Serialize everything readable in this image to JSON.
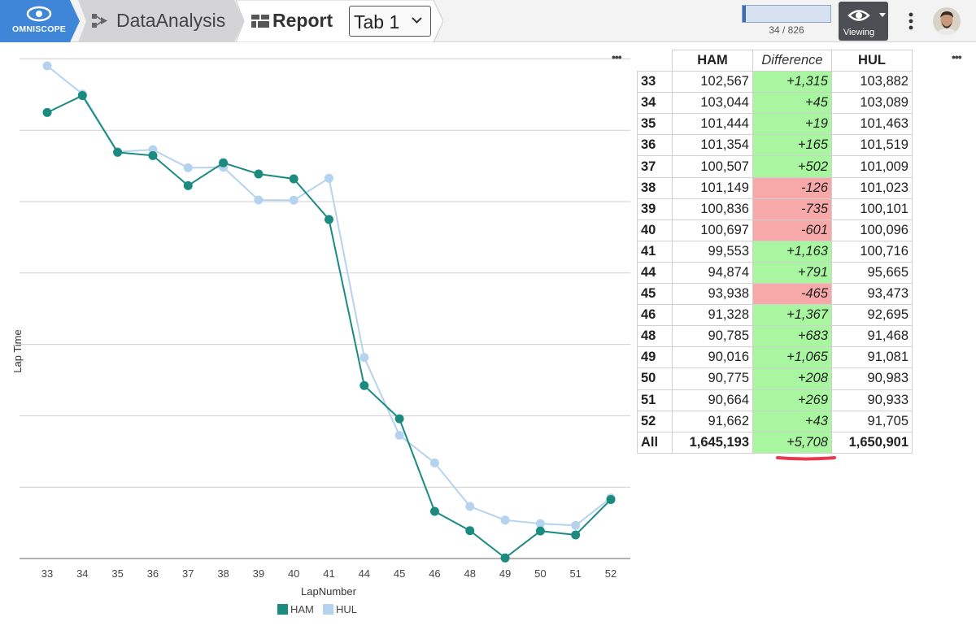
{
  "app": {
    "logo_text": "OMNISCOPE",
    "breadcrumb": [
      "DataAnalysis",
      "Report"
    ],
    "tab_selector": "Tab 1",
    "record_counter": "34 / 826",
    "record_progress": 0.04,
    "view_mode": "Viewing",
    "more_menu_icon": "vertical-dots-icon"
  },
  "colors": {
    "ham": "#1b8b80",
    "hul": "#b5d3ef",
    "positive": "#a8f7a0",
    "negative": "#f7a8a8",
    "brand": "#3f86d8"
  },
  "chart_data": {
    "type": "line",
    "categories": [
      "33",
      "34",
      "35",
      "36",
      "37",
      "38",
      "39",
      "40",
      "41",
      "44",
      "45",
      "46",
      "48",
      "49",
      "50",
      "51",
      "52"
    ],
    "series": [
      {
        "name": "HAM",
        "values": [
          102567,
          103044,
          101444,
          101354,
          100507,
          101149,
          100836,
          100697,
          99553,
          94874,
          93938,
          91328,
          90785,
          90016,
          90775,
          90664,
          91662
        ]
      },
      {
        "name": "HUL",
        "values": [
          103882,
          103089,
          101463,
          101519,
          101009,
          101023,
          100101,
          100096,
          100716,
          95665,
          93473,
          92695,
          91468,
          91081,
          90983,
          90933,
          91705
        ]
      }
    ],
    "xlabel": "LapNumber",
    "ylabel": "Lap Time",
    "ylim": [
      90000,
      104500
    ],
    "grid": true,
    "legend": "bottom-center"
  },
  "table": {
    "headers": [
      "HAM",
      "Difference",
      "HUL"
    ],
    "rows": [
      {
        "lap": "33",
        "ham": "102,567",
        "diff": "+1,315",
        "hul": "103,882"
      },
      {
        "lap": "34",
        "ham": "103,044",
        "diff": "+45",
        "hul": "103,089"
      },
      {
        "lap": "35",
        "ham": "101,444",
        "diff": "+19",
        "hul": "101,463"
      },
      {
        "lap": "36",
        "ham": "101,354",
        "diff": "+165",
        "hul": "101,519"
      },
      {
        "lap": "37",
        "ham": "100,507",
        "diff": "+502",
        "hul": "101,009"
      },
      {
        "lap": "38",
        "ham": "101,149",
        "diff": "-126",
        "hul": "101,023"
      },
      {
        "lap": "39",
        "ham": "100,836",
        "diff": "-735",
        "hul": "100,101"
      },
      {
        "lap": "40",
        "ham": "100,697",
        "diff": "-601",
        "hul": "100,096"
      },
      {
        "lap": "41",
        "ham": "99,553",
        "diff": "+1,163",
        "hul": "100,716"
      },
      {
        "lap": "44",
        "ham": "94,874",
        "diff": "+791",
        "hul": "95,665"
      },
      {
        "lap": "45",
        "ham": "93,938",
        "diff": "-465",
        "hul": "93,473"
      },
      {
        "lap": "46",
        "ham": "91,328",
        "diff": "+1,367",
        "hul": "92,695"
      },
      {
        "lap": "48",
        "ham": "90,785",
        "diff": "+683",
        "hul": "91,468"
      },
      {
        "lap": "49",
        "ham": "90,016",
        "diff": "+1,065",
        "hul": "91,081"
      },
      {
        "lap": "50",
        "ham": "90,775",
        "diff": "+208",
        "hul": "90,983"
      },
      {
        "lap": "51",
        "ham": "90,664",
        "diff": "+269",
        "hul": "90,933"
      },
      {
        "lap": "52",
        "ham": "91,662",
        "diff": "+43",
        "hul": "91,705"
      }
    ],
    "total": {
      "lap": "All",
      "ham": "1,645,193",
      "diff": "+5,708",
      "hul": "1,650,901"
    }
  },
  "annotation": {
    "underline_color": "#e8384f",
    "underlined_value": "+5,708"
  }
}
